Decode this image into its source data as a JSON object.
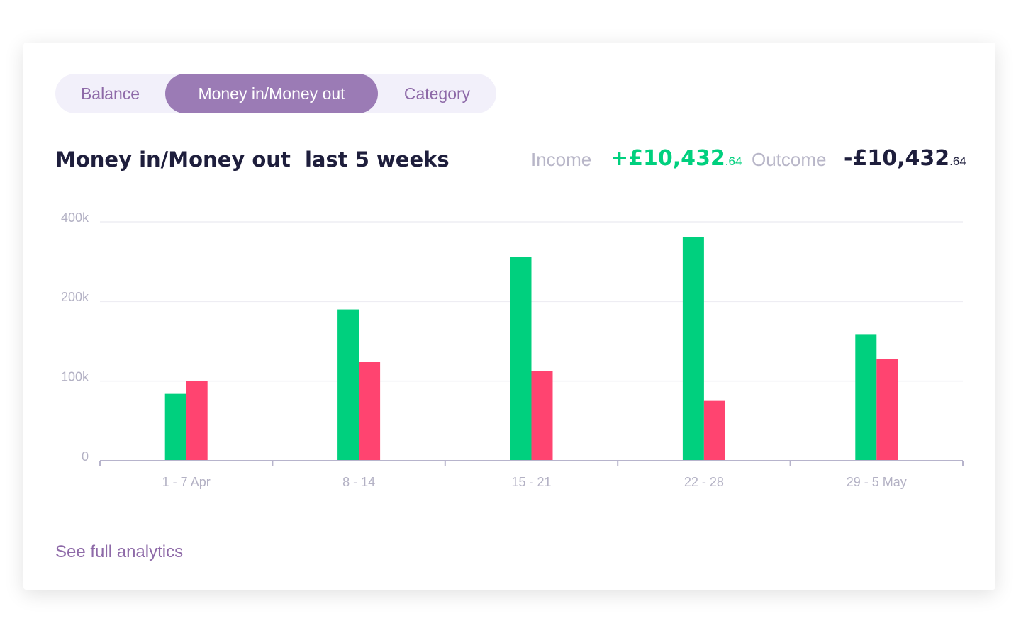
{
  "tabs": [
    "Balance",
    "Money in/Money out",
    "Category"
  ],
  "header": {
    "title": "Money in/Money out  last 5 weeks",
    "income_value": "+£10,432",
    "income_cents": ".64",
    "outcome_value": "-£10,432",
    "outcome_cents": ".64"
  },
  "footer": {
    "link": "See full analytics"
  },
  "chart_data": {
    "type": "bar",
    "categories": [
      "1 - 7 Apr",
      "8 - 14",
      "15 - 21",
      "22 - 28",
      "29 - 5 May"
    ],
    "series": [
      {
        "name": "Income",
        "color": "#00d07e",
        "values": [
          84000,
          190000,
          312000,
          362000,
          159000
        ]
      },
      {
        "name": "Outcome",
        "color": "#ff4470",
        "values": [
          100000,
          124000,
          113000,
          76000,
          128000
        ]
      }
    ],
    "ylim": [
      0,
      400000
    ],
    "yticks": [
      0,
      {
        "value": 100000,
        "label": "100k"
      },
      {
        "value": 200000,
        "label": "200k"
      },
      {
        "value": 400000,
        "label": "400k"
      }
    ],
    "grid": true
  }
}
